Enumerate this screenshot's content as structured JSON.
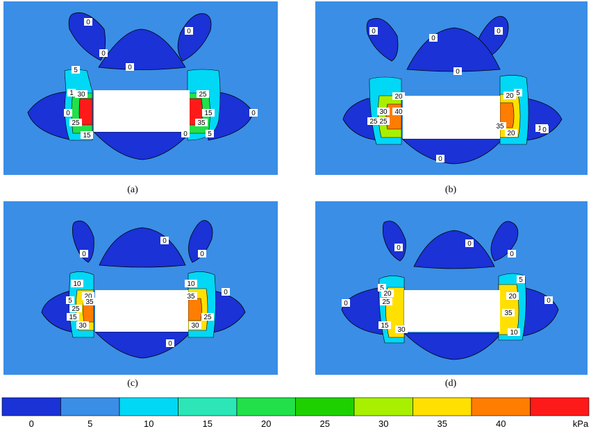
{
  "colors": {
    "background": "#3a8ee6",
    "zero_lobe": "#1a32d6",
    "cutout": "#ffffff",
    "levels": [
      "#1a32d6",
      "#3a8ee6",
      "#00d8f5",
      "#2ce6b8",
      "#22e04a",
      "#1fd000",
      "#a8f000",
      "#ffe000",
      "#ff7d00",
      "#ff1a1a"
    ]
  },
  "panels": [
    {
      "caption": "(a)",
      "labels": [
        "0",
        "0",
        "0",
        "0",
        "5",
        "1",
        "30",
        "0",
        "25",
        "15",
        "25",
        "15",
        "35",
        "0",
        "5",
        "0"
      ]
    },
    {
      "caption": "(b)",
      "labels": [
        "0",
        "0",
        "0",
        "0",
        "20",
        "30",
        "40",
        "25",
        "25",
        "5",
        "20",
        "35",
        "10",
        "20",
        "0",
        "0"
      ]
    },
    {
      "caption": "(c)",
      "labels": [
        "0",
        "0",
        "0",
        "10",
        "20",
        "5",
        "35",
        "25",
        "15",
        "30",
        "10",
        "35",
        "25",
        "30",
        "0",
        "0"
      ]
    },
    {
      "caption": "(d)",
      "labels": [
        "0",
        "0",
        "0",
        "5",
        "20",
        "25",
        "0",
        "15",
        "30",
        "5",
        "20",
        "35",
        "10",
        "0"
      ]
    }
  ],
  "colorbar": {
    "ticks": [
      "0",
      "5",
      "10",
      "15",
      "20",
      "25",
      "30",
      "35",
      "40"
    ],
    "unit": "kPa"
  }
}
